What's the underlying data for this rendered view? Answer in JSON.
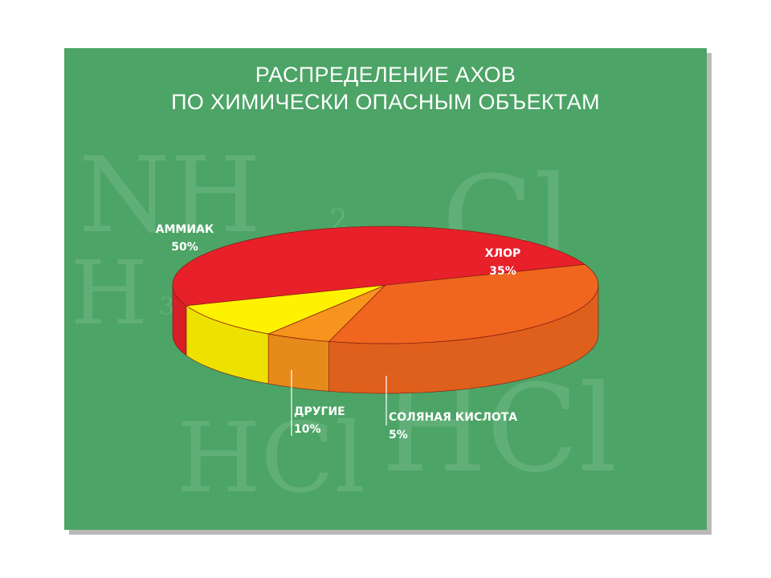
{
  "title": {
    "line1": "РАСПРЕДЕЛЕНИЕ АХОВ",
    "line2": "ПО ХИМИЧЕСКИ ОПАСНЫМ ОБЪЕКТАМ"
  },
  "watermark": {
    "nh": "NH",
    "nh_sub": "2",
    "h3": "H",
    "h3_sub": "3",
    "cl": "Cl",
    "hcl_1": "HCl",
    "hcl_2": "HCl"
  },
  "colors": {
    "background": "#4ca466",
    "ammonia": "#e8202a",
    "chlorine": "#f0661f",
    "hydrochloric": "#f7941d",
    "other": "#fff200"
  },
  "chart_data": {
    "type": "pie",
    "style": "3d",
    "title": "РАСПРЕДЕЛЕНИЕ АХОВ ПО ХИМИЧЕСКИ ОПАСНЫМ ОБЪЕКТАМ",
    "slices": [
      {
        "name": "АММИАК",
        "value": 50,
        "label": "50%",
        "color": "#e8202a"
      },
      {
        "name": "ХЛОР",
        "value": 35,
        "label": "35%",
        "color": "#f0661f"
      },
      {
        "name": "СОЛЯНАЯ КИСЛОТА",
        "value": 5,
        "label": "5%",
        "color": "#f7941d"
      },
      {
        "name": "ДРУГИЕ",
        "value": 10,
        "label": "10%",
        "color": "#fff200"
      }
    ]
  }
}
